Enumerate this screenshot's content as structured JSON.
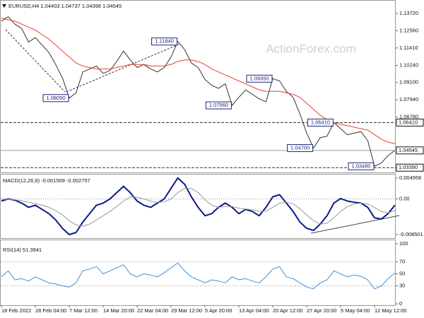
{
  "chart_data": [
    {
      "type": "line",
      "title": "EURUSD,H4  1.04403 1.04737 1.04398 1.04545",
      "watermark": "ActionForex.com",
      "categories": [
        "18 Feb 2022",
        null,
        null,
        null,
        null,
        "28 Feb 04:00",
        null,
        null,
        null,
        null,
        "7 Mar 12:00",
        null,
        null,
        null,
        null,
        "14 Mar 20:00",
        null,
        null,
        null,
        null,
        "22 Mar 04:00",
        null,
        null,
        null,
        null,
        "29 Mar 12:00",
        null,
        null,
        null,
        null,
        "5 Apr 20:00",
        null,
        null,
        null,
        null,
        "13 Apr 04:00",
        null,
        null,
        null,
        null,
        "20 Apr 12:00",
        null,
        null,
        null,
        null,
        "27 Apr 20:00",
        null,
        null,
        null,
        null,
        "5 May 04:00",
        null,
        null,
        null,
        null,
        "12 May 12:00",
        null,
        null,
        null
      ],
      "series": [
        {
          "color": "#333333",
          "width": 1,
          "values": [
            1.132,
            1.135,
            1.13,
            1.127,
            1.118,
            1.121,
            1.116,
            1.111,
            1.103,
            1.094,
            1.0805,
            1.084,
            1.098,
            1.1,
            1.102,
            1.097,
            1.099,
            1.105,
            1.112,
            1.106,
            1.101,
            1.103,
            1.1,
            1.098,
            1.101,
            1.108,
            1.1184,
            1.113,
            1.104,
            1.101,
            1.093,
            1.089,
            1.087,
            1.09,
            1.0756,
            1.081,
            1.086,
            1.083,
            1.08,
            1.078,
            1.0935,
            1.092,
            1.085,
            1.081,
            1.07,
            1.057,
            1.047,
            1.054,
            1.055,
            1.0641,
            1.06,
            1.056,
            1.057,
            1.058,
            1.052,
            1.0348,
            1.037,
            1.042,
            1.0454
          ]
        },
        {
          "color": "#e8412c",
          "width": 1,
          "values": [
            1.134,
            1.133,
            1.132,
            1.13,
            1.128,
            1.126,
            1.123,
            1.12,
            1.116,
            1.112,
            1.108,
            1.104,
            1.102,
            1.101,
            1.1,
            1.1,
            1.1,
            1.101,
            1.102,
            1.103,
            1.103,
            1.103,
            1.102,
            1.102,
            1.102,
            1.103,
            1.105,
            1.106,
            1.106,
            1.105,
            1.103,
            1.1,
            1.098,
            1.096,
            1.094,
            1.092,
            1.09,
            1.088,
            1.086,
            1.085,
            1.085,
            1.085,
            1.084,
            1.083,
            1.081,
            1.077,
            1.073,
            1.069,
            1.066,
            1.064,
            1.063,
            1.062,
            1.061,
            1.06,
            1.059,
            1.056,
            1.053,
            1.051,
            1.05
          ]
        }
      ],
      "ylim": [
        1.0307,
        1.1462
      ],
      "yticks": [
        {
          "value": 1.1372,
          "label": "1.13720"
        },
        {
          "value": 1.1256,
          "label": "1.12560"
        },
        {
          "value": 1.1141,
          "label": "1.11410"
        },
        {
          "value": 1.1024,
          "label": "1.10240"
        },
        {
          "value": 1.091,
          "label": "1.09100"
        },
        {
          "value": 1.0794,
          "label": "1.07940"
        },
        {
          "value": 1.0678,
          "label": "1.06780"
        }
      ],
      "levels": [
        {
          "value": 1.0641,
          "label": "1.06410",
          "style": "dashed"
        },
        {
          "value": 1.04545,
          "label": "1.04545",
          "style": "solid"
        },
        {
          "value": 1.0339,
          "label": "1.03390",
          "style": "dashed"
        }
      ],
      "annotations": [
        {
          "value": 1.0805,
          "label": "1.08050"
        },
        {
          "value": 1.1184,
          "label": "1.11840"
        },
        {
          "value": 1.0935,
          "label": "1.09350"
        },
        {
          "value": 1.0756,
          "label": "1.07560"
        },
        {
          "value": 1.0641,
          "label": "1.06410"
        },
        {
          "value": 1.047,
          "label": "1.04700"
        },
        {
          "value": 1.0348,
          "label": "1.03480"
        }
      ]
    },
    {
      "type": "line",
      "title": "MACD(12,26,9) -0.001509 -0.002757",
      "series": [
        {
          "color": "#0b1a8a",
          "width": 2,
          "values": [
            -0.0005,
            0,
            -0.0003,
            -0.001,
            -0.002,
            -0.0015,
            -0.0025,
            -0.0035,
            -0.005,
            -0.007,
            -0.0085,
            -0.008,
            -0.0055,
            -0.0035,
            -0.0015,
            -0.001,
            0,
            0.0015,
            0.003,
            0.0015,
            -0.0005,
            -0.0015,
            -0.002,
            -0.001,
            0,
            0.0025,
            0.005,
            0.0035,
            0.0005,
            -0.002,
            -0.004,
            -0.0035,
            -0.002,
            -0.001,
            -0.002,
            -0.0035,
            -0.0025,
            -0.003,
            -0.004,
            -0.002,
            0.0005,
            0.001,
            -0.001,
            -0.003,
            -0.0055,
            -0.007,
            -0.0075,
            -0.006,
            -0.004,
            -0.001,
            0.0001,
            -0.0005,
            -0.0008,
            -0.001,
            -0.002,
            -0.0045,
            -0.0048,
            -0.0035,
            -0.0015
          ]
        },
        {
          "color": "#9a9a9a",
          "width": 1,
          "values": [
            0,
            -0.0001,
            -0.0002,
            -0.0004,
            -0.0008,
            -0.0011,
            -0.0015,
            -0.002,
            -0.0028,
            -0.0038,
            -0.0052,
            -0.0062,
            -0.0065,
            -0.006,
            -0.005,
            -0.004,
            -0.003,
            -0.0018,
            -0.0005,
            0.0005,
            0.0004,
            0,
            -0.0005,
            -0.0008,
            -0.0007,
            0,
            0.0015,
            0.0025,
            0.0025,
            0.0015,
            -0.0002,
            -0.0015,
            -0.002,
            -0.0018,
            -0.0018,
            -0.0022,
            -0.0024,
            -0.0026,
            -0.003,
            -0.0029,
            -0.002,
            -0.001,
            -0.0008,
            -0.0012,
            -0.0023,
            -0.0038,
            -0.0052,
            -0.006,
            -0.0058,
            -0.0045,
            -0.003,
            -0.0018,
            -0.0012,
            -0.001,
            -0.0012,
            -0.002,
            -0.003,
            -0.0033,
            -0.0028
          ]
        }
      ],
      "ylim": [
        -0.00934,
        0.0058
      ],
      "yticks": [
        0.004956,
        {
          "value": 0,
          "label": "0.00"
        },
        -0.008501
      ],
      "levels": [
        {
          "value": 0,
          "style": "dotted"
        }
      ]
    },
    {
      "type": "line",
      "title": "RSI(14) 51.3941",
      "series": [
        {
          "color": "#3d8fdc",
          "width": 1,
          "values": [
            45,
            55,
            40,
            42,
            38,
            45,
            40,
            35,
            33,
            30,
            28,
            35,
            55,
            58,
            62,
            50,
            55,
            60,
            65,
            50,
            45,
            50,
            48,
            45,
            52,
            60,
            68,
            55,
            45,
            40,
            35,
            40,
            38,
            35,
            45,
            40,
            42,
            38,
            35,
            45,
            58,
            62,
            45,
            42,
            35,
            28,
            25,
            35,
            40,
            55,
            50,
            45,
            48,
            46,
            40,
            25,
            30,
            42,
            51.3941
          ]
        }
      ],
      "ylim": [
        0,
        100
      ],
      "yticks": [
        100,
        70,
        50,
        30,
        0
      ],
      "levels": [
        {
          "value": 70,
          "style": "dotted"
        },
        {
          "value": 30,
          "style": "dotted"
        }
      ]
    }
  ]
}
